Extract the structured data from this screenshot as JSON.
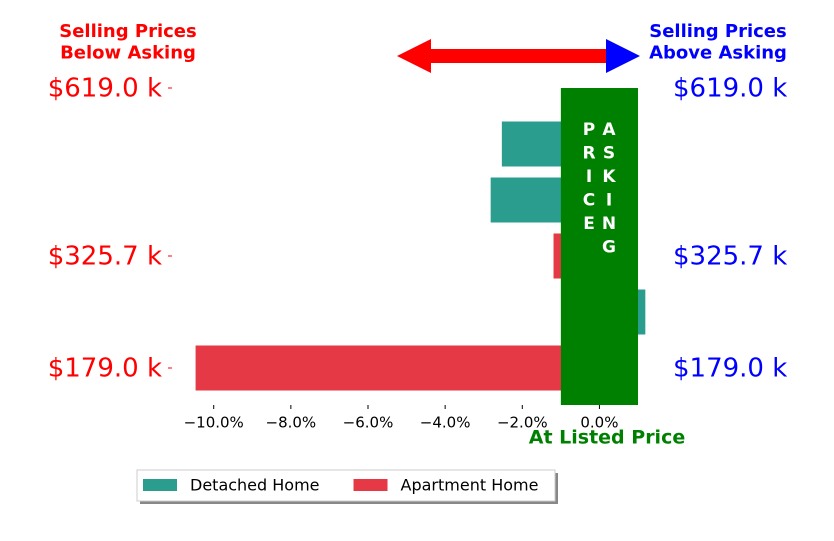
{
  "chart_data": {
    "type": "barh",
    "categories": [
      "$619.0 k",
      null,
      null,
      "$325.7 k",
      null,
      "$179.0 k"
    ],
    "series": [
      {
        "name": "Detached Home",
        "color": "#2a9d8f",
        "values": [
          null,
          -2.53,
          -2.82,
          null,
          1.19,
          null
        ]
      },
      {
        "name": "Apartment Home",
        "color": "#e63946",
        "values": [
          null,
          null,
          null,
          -1.19,
          null,
          -10.47
        ]
      }
    ],
    "xlim": [
      -10.9,
      1.0
    ],
    "xticks": [
      {
        "value": -10,
        "label": "−10.0%"
      },
      {
        "value": -8,
        "label": "−8.0%"
      },
      {
        "value": -6,
        "label": "−6.0%"
      },
      {
        "value": -4,
        "label": "−4.0%"
      },
      {
        "value": -2,
        "label": "−2.0%"
      },
      {
        "value": 0,
        "label": "0.0%"
      }
    ],
    "asking_band": [
      -1,
      1
    ],
    "annotations": {
      "below": "Selling Prices\nBelow Asking",
      "above": "Selling Prices\nAbove Asking",
      "asking": "ASKING PRICE",
      "listed": "At Listed Price"
    },
    "legend": "bottom"
  }
}
